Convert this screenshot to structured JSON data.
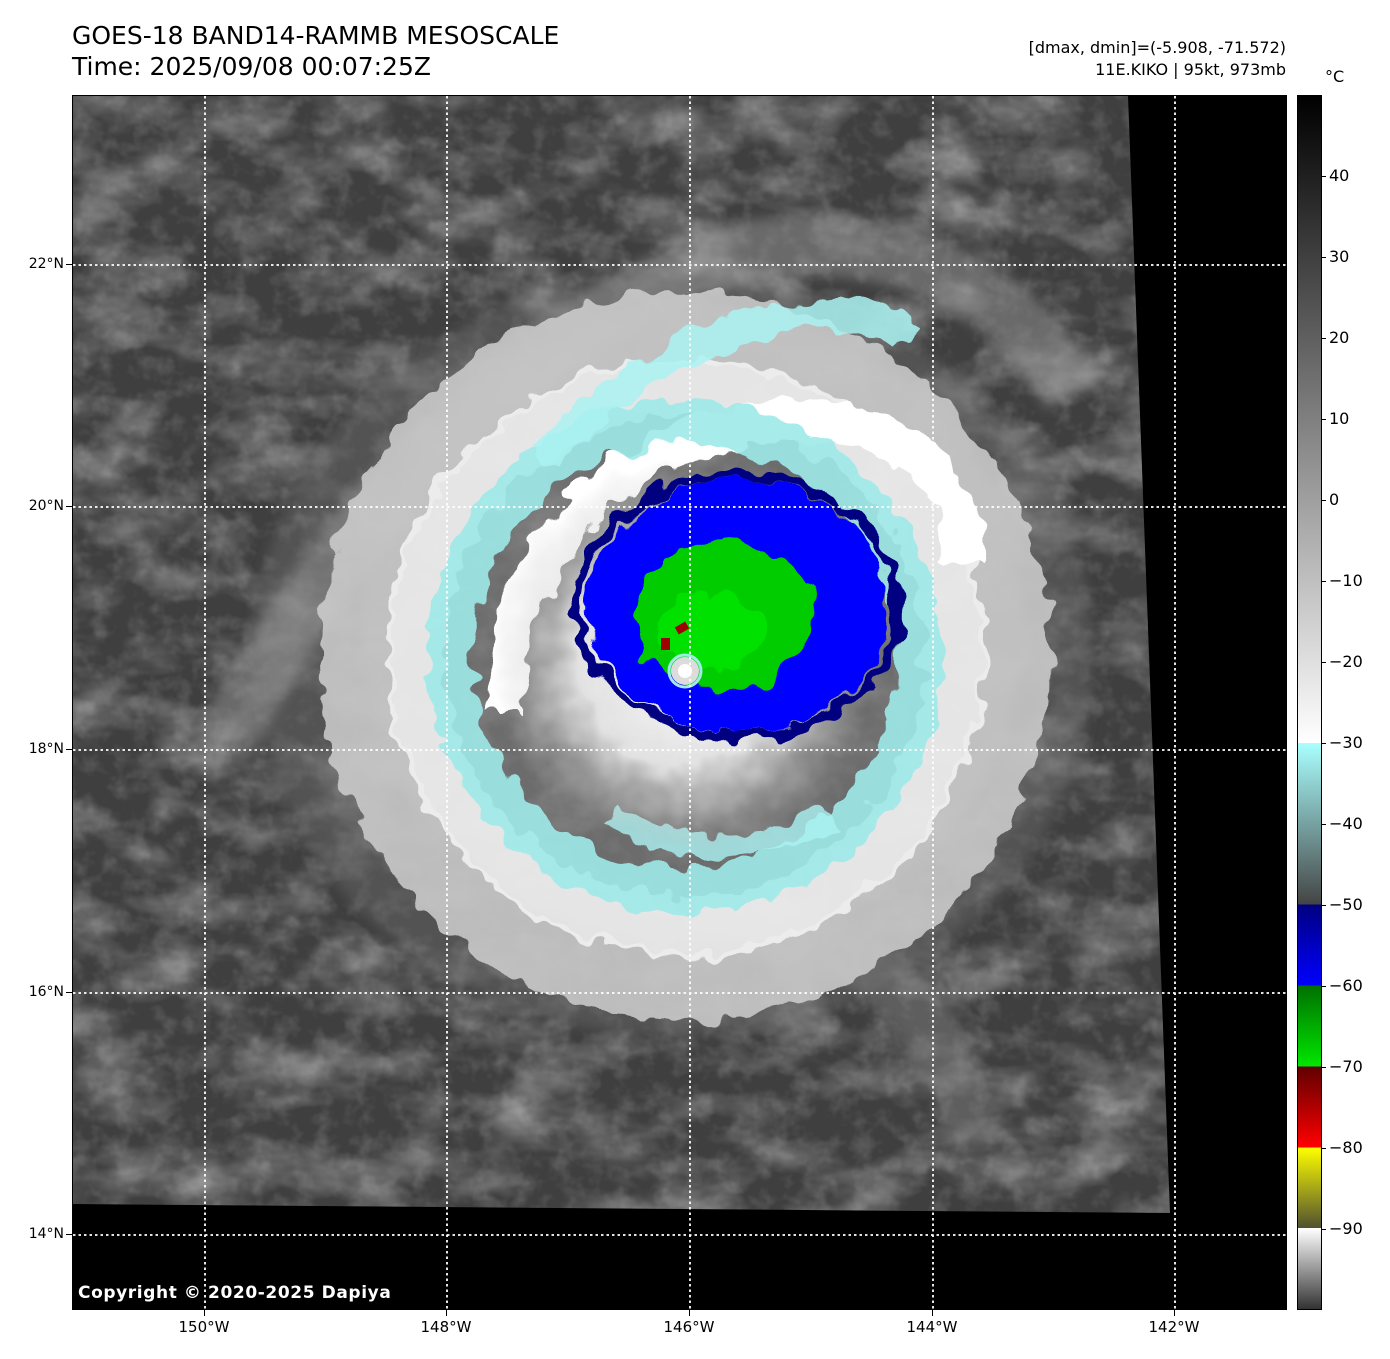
{
  "header": {
    "title": "GOES-18 BAND14-RAMMB MESOSCALE",
    "time": "Time: 2025/09/08 00:07:25Z",
    "dminmax": "[dmax, dmin]=(-5.908, -71.572)",
    "storm": "11E.KIKO | 95kt, 973mb"
  },
  "map": {
    "lat_labels": [
      "22°N",
      "20°N",
      "18°N",
      "16°N",
      "14°N"
    ],
    "lon_labels": [
      "150°W",
      "148°W",
      "146°W",
      "144°W",
      "142°W"
    ],
    "copyright": "Copyright © 2020-2025 Dapiya"
  },
  "colorbar": {
    "unit": "°C",
    "ticks": [
      "40",
      "30",
      "20",
      "10",
      "0",
      "−10",
      "−20",
      "−30",
      "−40",
      "−50",
      "−60",
      "−70",
      "−80",
      "−90"
    ],
    "segments": [
      {
        "from": 50,
        "to": -30,
        "colors": [
          "#000000",
          "#ffffff"
        ]
      },
      {
        "from": -30,
        "to": -50,
        "colors": [
          "#aaffff",
          "#444444"
        ]
      },
      {
        "from": -50,
        "to": -60,
        "colors": [
          "#000080",
          "#0000ff"
        ]
      },
      {
        "from": -60,
        "to": -70,
        "colors": [
          "#007000",
          "#00e600"
        ]
      },
      {
        "from": -70,
        "to": -80,
        "colors": [
          "#600000",
          "#ff0000"
        ]
      },
      {
        "from": -80,
        "to": -90,
        "colors": [
          "#ffff00",
          "#505030"
        ]
      },
      {
        "from": -90,
        "to": -100,
        "colors": [
          "#ffffff",
          "#333333"
        ]
      }
    ]
  },
  "storm_center": {
    "lat": 18.62,
    "lon": -146.0
  }
}
